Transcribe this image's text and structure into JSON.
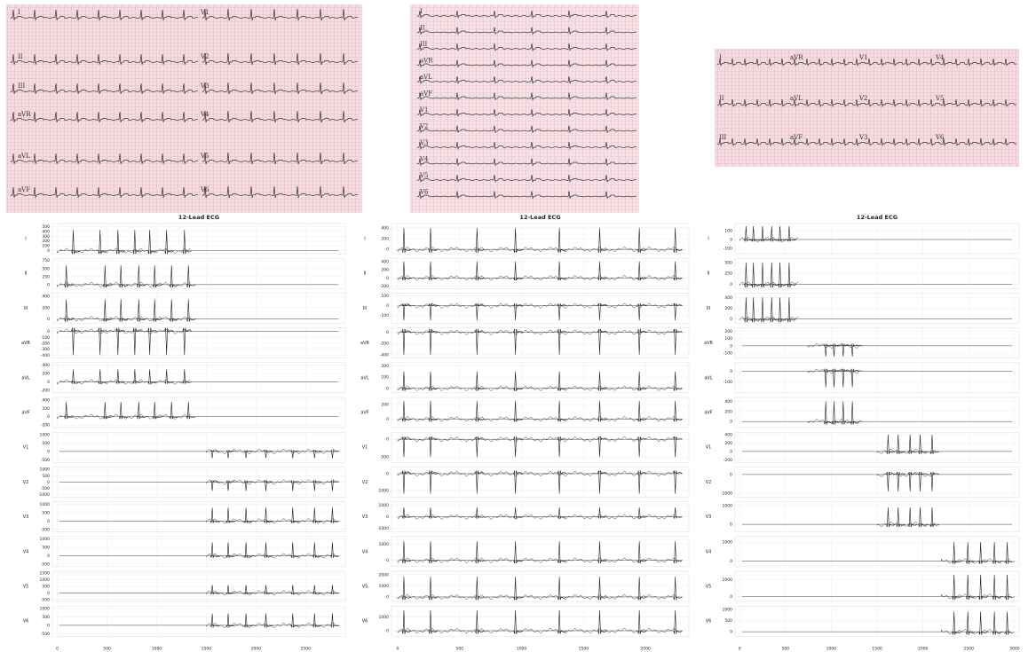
{
  "photos": [
    {
      "labels": [
        "I",
        "II",
        "III",
        "aVR",
        "aVL",
        "aVF",
        "V1",
        "V2",
        "V3",
        "V4",
        "V5",
        "V6"
      ]
    },
    {
      "labels": [
        "I",
        "II",
        "III",
        "aVR",
        "aVL",
        "aVF",
        "V1",
        "V2",
        "V3",
        "V4",
        "V5",
        "V6"
      ]
    },
    {
      "labels": [
        "I",
        "aVR",
        "V1",
        "V4",
        "II",
        "aVL",
        "V2",
        "V5",
        "III",
        "aVF",
        "V3",
        "V6"
      ]
    }
  ],
  "chart_data": [
    {
      "type": "line",
      "title": "12-Lead ECG",
      "xlim": [
        -50,
        2900
      ],
      "xticks": [
        0,
        500,
        1000,
        1500,
        2000,
        2500
      ],
      "leads": [
        {
          "name": "I",
          "ylim": [
            -60,
            560
          ],
          "yticks": [
            0,
            100,
            200,
            300,
            400,
            500
          ],
          "active": [
            0,
            1350
          ],
          "peaks": [
            160,
            430,
            610,
            780,
            930,
            1100,
            1280
          ],
          "amplitude": 430
        },
        {
          "name": "II",
          "ylim": [
            -120,
            820
          ],
          "yticks": [
            0,
            250,
            500,
            750
          ],
          "active": [
            0,
            1350
          ],
          "peaks": [
            90,
            480,
            640,
            820,
            980,
            1150,
            1320
          ],
          "amplitude": 600
        },
        {
          "name": "III",
          "ylim": [
            -80,
            460
          ],
          "yticks": [
            0,
            200,
            400
          ],
          "active": [
            0,
            1350
          ],
          "peaks": [
            90,
            480,
            640,
            820,
            980,
            1150,
            1320
          ],
          "amplitude": 350
        },
        {
          "name": "aVR",
          "ylim": [
            -450,
            60
          ],
          "yticks": [
            -400,
            -300,
            -200,
            -100,
            0
          ],
          "active": [
            0,
            1350
          ],
          "peaks": [
            160,
            430,
            610,
            780,
            930,
            1100,
            1280
          ],
          "amplitude": -400
        },
        {
          "name": "aVL",
          "ylim": [
            -260,
            460
          ],
          "yticks": [
            -200,
            0,
            200,
            400
          ],
          "active": [
            0,
            1350
          ],
          "peaks": [
            160,
            430,
            610,
            780,
            930,
            1100,
            1280
          ],
          "amplitude": 300
        },
        {
          "name": "aVF",
          "ylim": [
            -260,
            460
          ],
          "yticks": [
            -200,
            0,
            200,
            400
          ],
          "active": [
            0,
            1350
          ],
          "peaks": [
            90,
            480,
            640,
            820,
            980,
            1150,
            1320
          ],
          "amplitude": 350
        },
        {
          "name": "V1",
          "ylim": [
            -650,
            1150
          ],
          "yticks": [
            -500,
            0,
            500,
            1000
          ],
          "active": [
            1500,
            2800
          ],
          "peaks": [
            1560,
            1720,
            1900,
            2100,
            2370,
            2590,
            2770
          ],
          "amplitude": -400
        },
        {
          "name": "V2",
          "ylim": [
            -1200,
            1200
          ],
          "yticks": [
            -1000,
            -500,
            0,
            500,
            1000
          ],
          "active": [
            1500,
            2800
          ],
          "peaks": [
            1560,
            1720,
            1900,
            2100,
            2370,
            2590,
            2770
          ],
          "amplitude": -700
        },
        {
          "name": "V3",
          "ylim": [
            -650,
            1150
          ],
          "yticks": [
            -500,
            0,
            500,
            1000
          ],
          "active": [
            1500,
            2800
          ],
          "peaks": [
            1560,
            1720,
            1900,
            2100,
            2370,
            2590,
            2770
          ],
          "amplitude": 800
        },
        {
          "name": "V4",
          "ylim": [
            -650,
            1150
          ],
          "yticks": [
            -500,
            0,
            500,
            1000
          ],
          "active": [
            1500,
            2800
          ],
          "peaks": [
            1560,
            1720,
            1900,
            2100,
            2370,
            2590,
            2770
          ],
          "amplitude": 800
        },
        {
          "name": "V5",
          "ylim": [
            -650,
            1650
          ],
          "yticks": [
            -500,
            0,
            500,
            1000,
            1500
          ],
          "active": [
            1500,
            2800
          ],
          "peaks": [
            1560,
            1720,
            1900,
            2100,
            2370,
            2590,
            2770
          ],
          "amplitude": 600
        },
        {
          "name": "V6",
          "ylim": [
            -650,
            1150
          ],
          "yticks": [
            -500,
            0,
            500,
            1000
          ],
          "active": [
            1500,
            2800
          ],
          "peaks": [
            1560,
            1720,
            1900,
            2100,
            2370,
            2590,
            2770
          ],
          "amplitude": 700
        }
      ]
    },
    {
      "type": "line",
      "title": "12-Lead ECG",
      "xlim": [
        -50,
        2350
      ],
      "xticks": [
        0,
        500,
        1000,
        1500,
        2000
      ],
      "leads": [
        {
          "name": "I",
          "ylim": [
            -80,
            480
          ],
          "yticks": [
            0,
            200,
            400
          ],
          "active": [
            0,
            2250
          ],
          "peaks": [
            50,
            265,
            640,
            950,
            1305,
            1630,
            1950,
            2240
          ],
          "amplitude": 400
        },
        {
          "name": "II",
          "ylim": [
            -260,
            480
          ],
          "yticks": [
            -200,
            0,
            200,
            400
          ],
          "active": [
            0,
            2250
          ],
          "peaks": [
            50,
            265,
            640,
            950,
            1305,
            1630,
            1950,
            2240
          ],
          "amplitude": 400
        },
        {
          "name": "III",
          "ylim": [
            -180,
            130
          ],
          "yticks": [
            -100,
            0,
            100
          ],
          "active": [
            0,
            2250
          ],
          "peaks": [
            50,
            265,
            640,
            950,
            1305,
            1630,
            1950,
            2240
          ],
          "amplitude": -150
        },
        {
          "name": "aVR",
          "ylim": [
            -460,
            80
          ],
          "yticks": [
            -400,
            -200,
            0
          ],
          "active": [
            0,
            2250
          ],
          "peaks": [
            50,
            265,
            640,
            950,
            1305,
            1630,
            1950,
            2240
          ],
          "amplitude": -400
        },
        {
          "name": "aVL",
          "ylim": [
            -40,
            230
          ],
          "yticks": [
            0,
            100,
            200
          ],
          "active": [
            0,
            2250
          ],
          "peaks": [
            50,
            265,
            640,
            950,
            1305,
            1630,
            1950,
            2240
          ],
          "amplitude": 150
        },
        {
          "name": "aVF",
          "ylim": [
            -120,
            300
          ],
          "yticks": [
            0,
            200
          ],
          "active": [
            0,
            2250
          ],
          "peaks": [
            50,
            265,
            640,
            950,
            1305,
            1630,
            1950,
            2240
          ],
          "amplitude": 250
        },
        {
          "name": "V1",
          "ylim": [
            -650,
            200
          ],
          "yticks": [
            -500,
            0
          ],
          "active": [
            0,
            2250
          ],
          "peaks": [
            50,
            265,
            640,
            950,
            1305,
            1630,
            1950,
            2240
          ],
          "amplitude": -500
        },
        {
          "name": "V2",
          "ylim": [
            -1400,
            400
          ],
          "yticks": [
            -1000,
            0
          ],
          "active": [
            0,
            2250
          ],
          "peaks": [
            50,
            265,
            640,
            950,
            1305,
            1630,
            1950,
            2240
          ],
          "amplitude": -1200
        },
        {
          "name": "V3",
          "ylim": [
            -1300,
            1300
          ],
          "yticks": [
            -1000,
            0,
            1000
          ],
          "active": [
            0,
            2250
          ],
          "peaks": [
            50,
            265,
            640,
            950,
            1305,
            1630,
            1950,
            2240
          ],
          "amplitude": 800
        },
        {
          "name": "V4",
          "ylim": [
            -400,
            1500
          ],
          "yticks": [
            0,
            1000
          ],
          "active": [
            0,
            2250
          ],
          "peaks": [
            50,
            265,
            640,
            950,
            1305,
            1630,
            1950,
            2240
          ],
          "amplitude": 1200
        },
        {
          "name": "V5",
          "ylim": [
            -400,
            2300
          ],
          "yticks": [
            0,
            1000,
            2000
          ],
          "active": [
            0,
            2250
          ],
          "peaks": [
            50,
            265,
            640,
            950,
            1305,
            1630,
            1950,
            2240
          ],
          "amplitude": 1800
        },
        {
          "name": "V6",
          "ylim": [
            -400,
            1800
          ],
          "yticks": [
            0,
            1000
          ],
          "active": [
            0,
            2250
          ],
          "peaks": [
            50,
            265,
            640,
            950,
            1305,
            1630,
            1950,
            2240
          ],
          "amplitude": 1500
        }
      ]
    },
    {
      "type": "line",
      "title": "12-Lead ECG",
      "xlim": [
        -50,
        3050
      ],
      "xticks": [
        0,
        500,
        1000,
        1500,
        2000,
        2500,
        3000
      ],
      "leads": [
        {
          "name": "I",
          "ylim": [
            -160,
            180
          ],
          "yticks": [
            -100,
            0,
            100
          ],
          "active": [
            0,
            650
          ],
          "peaks": [
            70,
            150,
            250,
            350,
            440,
            540
          ],
          "amplitude": 150
        },
        {
          "name": "II",
          "ylim": [
            -100,
            600
          ],
          "yticks": [
            0,
            250,
            500
          ],
          "active": [
            0,
            650
          ],
          "peaks": [
            70,
            150,
            250,
            350,
            440,
            540
          ],
          "amplitude": 500
        },
        {
          "name": "III",
          "ylim": [
            -80,
            480
          ],
          "yticks": [
            0,
            200,
            400
          ],
          "active": [
            0,
            650
          ],
          "peaks": [
            70,
            150,
            250,
            350,
            440,
            540
          ],
          "amplitude": 400
        },
        {
          "name": "aVR",
          "ylim": [
            -170,
            250
          ],
          "yticks": [
            -100,
            0,
            100,
            200
          ],
          "active": [
            750,
            1350
          ],
          "peaks": [
            940,
            1030,
            1130,
            1230
          ],
          "amplitude": -150
        },
        {
          "name": "aVL",
          "ylim": [
            -200,
            80
          ],
          "yticks": [
            -100,
            0
          ],
          "active": [
            750,
            1350
          ],
          "peaks": [
            940,
            1030,
            1130,
            1230
          ],
          "amplitude": -150
        },
        {
          "name": "aVF",
          "ylim": [
            -120,
            480
          ],
          "yticks": [
            0,
            200,
            400
          ],
          "active": [
            750,
            1350
          ],
          "peaks": [
            940,
            1030,
            1130,
            1230
          ],
          "amplitude": 400
        },
        {
          "name": "V1",
          "ylim": [
            -260,
            460
          ],
          "yticks": [
            -200,
            0,
            200,
            400
          ],
          "active": [
            1500,
            2150
          ],
          "peaks": [
            1620,
            1730,
            1860,
            1970,
            2100
          ],
          "amplitude": 400
        },
        {
          "name": "V2",
          "ylim": [
            -1200,
            400
          ],
          "yticks": [
            -1000,
            0
          ],
          "active": [
            1500,
            2150
          ],
          "peaks": [
            1620,
            1730,
            1860,
            1970,
            2100
          ],
          "amplitude": -900
        },
        {
          "name": "V3",
          "ylim": [
            -400,
            1200
          ],
          "yticks": [
            0,
            1000
          ],
          "active": [
            1500,
            2150
          ],
          "peaks": [
            1620,
            1730,
            1860,
            1970,
            2100
          ],
          "amplitude": 900
        },
        {
          "name": "V4",
          "ylim": [
            -300,
            1300
          ],
          "yticks": [
            0,
            1000
          ],
          "active": [
            2200,
            2950
          ],
          "peaks": [
            2340,
            2490,
            2630,
            2780,
            2920
          ],
          "amplitude": 1000
        },
        {
          "name": "V5",
          "ylim": [
            -300,
            1500
          ],
          "yticks": [
            0,
            1000
          ],
          "active": [
            2200,
            2950
          ],
          "peaks": [
            2340,
            2490,
            2630,
            2780,
            2920
          ],
          "amplitude": 1300
        },
        {
          "name": "V6",
          "ylim": [
            -200,
            1150
          ],
          "yticks": [
            0,
            500,
            1000
          ],
          "active": [
            2200,
            2950
          ],
          "peaks": [
            2340,
            2490,
            2630,
            2780,
            2920
          ],
          "amplitude": 900
        }
      ]
    }
  ]
}
